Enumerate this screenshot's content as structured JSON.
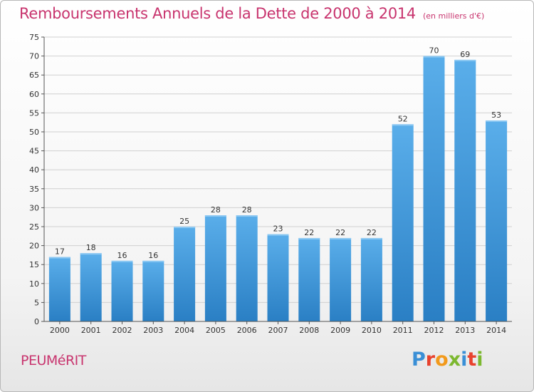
{
  "header": {
    "title": "Remboursements Annuels de la Dette de 2000 à 2014",
    "subtitle": "(en milliers d'€)"
  },
  "footer": {
    "place": "PEUMéRIT",
    "logo_text": "Proxiti"
  },
  "colors": {
    "accent": "#c8346e",
    "bar_top": "#5aaeea",
    "bar_bottom": "#2a7fc4",
    "logo_letters": [
      "#3a8fd6",
      "#e8422e",
      "#f29a1c",
      "#7cb82f",
      "#3a8fd6",
      "#e8422e",
      "#7cb82f"
    ]
  },
  "chart_data": {
    "type": "bar",
    "categories": [
      "2000",
      "2001",
      "2002",
      "2003",
      "2004",
      "2005",
      "2006",
      "2007",
      "2008",
      "2009",
      "2010",
      "2011",
      "2012",
      "2013",
      "2014"
    ],
    "values": [
      17,
      18,
      16,
      16,
      25,
      28,
      28,
      23,
      22,
      22,
      22,
      52,
      70,
      69,
      53
    ],
    "title": "Remboursements Annuels de la Dette de 2000 à 2014",
    "subtitle": "(en milliers d'€)",
    "xlabel": "",
    "ylabel": "",
    "ylim": [
      0,
      75
    ],
    "yticks": [
      0,
      5,
      10,
      15,
      20,
      25,
      30,
      35,
      40,
      45,
      50,
      55,
      60,
      65,
      70,
      75
    ],
    "grid": true,
    "legend": "none"
  }
}
